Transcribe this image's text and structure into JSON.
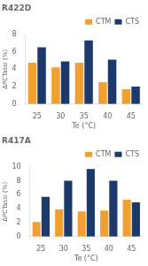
{
  "chart_data": [
    {
      "type": "bar",
      "title": "R422D",
      "xlabel": "Te (°C)",
      "ylabel": "ΔPCTassi (%)",
      "categories": [
        "25",
        "30",
        "35",
        "40",
        "45"
      ],
      "series": [
        {
          "name": "CTM",
          "color": "#F0A030",
          "values": [
            4.75,
            4.2,
            4.75,
            2.5,
            1.7
          ]
        },
        {
          "name": "CTS",
          "color": "#1B3A6B",
          "values": [
            6.5,
            4.9,
            7.3,
            5.1,
            2.0
          ]
        }
      ],
      "ylim": [
        0,
        8
      ],
      "yticks": [
        0,
        2,
        4,
        6,
        8
      ],
      "grid": false,
      "legend": "upper right"
    },
    {
      "type": "bar",
      "title": "R417A",
      "xlabel": "Te (°C)",
      "ylabel": "ΔPCTassi (%)",
      "categories": [
        "25",
        "30",
        "35",
        "40",
        "45"
      ],
      "series": [
        {
          "name": "CTM",
          "color": "#F0A030",
          "values": [
            2.1,
            3.9,
            3.6,
            3.75,
            5.3
          ]
        },
        {
          "name": "CTS",
          "color": "#1B3A6B",
          "values": [
            5.7,
            8.0,
            9.7,
            8.0,
            4.9
          ]
        }
      ],
      "ylim": [
        0,
        10
      ],
      "yticks": [
        0,
        2,
        4,
        6,
        8,
        10
      ],
      "grid": false,
      "legend": "upper right"
    }
  ]
}
